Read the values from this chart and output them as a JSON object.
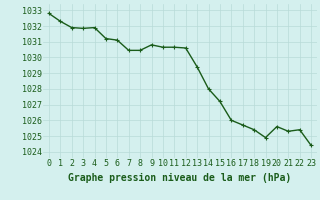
{
  "x": [
    0,
    1,
    2,
    3,
    4,
    5,
    6,
    7,
    8,
    9,
    10,
    11,
    12,
    13,
    14,
    15,
    16,
    17,
    18,
    19,
    20,
    21,
    22,
    23
  ],
  "y": [
    1032.8,
    1032.3,
    1031.9,
    1031.85,
    1031.9,
    1031.2,
    1031.1,
    1030.45,
    1030.45,
    1030.8,
    1030.65,
    1030.65,
    1030.6,
    1029.4,
    1028.0,
    1027.2,
    1026.0,
    1025.7,
    1025.4,
    1024.9,
    1025.6,
    1025.3,
    1025.4,
    1024.4
  ],
  "line_color": "#1a5c1a",
  "marker": "+",
  "markersize": 3.5,
  "linewidth": 1.0,
  "bg_color": "#d4f0ee",
  "grid_color": "#b8dbd8",
  "xlabel": "Graphe pression niveau de la mer (hPa)",
  "xlabel_fontsize": 7,
  "xlabel_color": "#1a5c1a",
  "tick_color": "#1a5c1a",
  "tick_fontsize": 6,
  "ytick_labels": [
    1024,
    1025,
    1026,
    1027,
    1028,
    1029,
    1030,
    1031,
    1032,
    1033
  ],
  "ylim": [
    1023.6,
    1033.4
  ],
  "xlim": [
    -0.5,
    23.5
  ],
  "xtick_labels": [
    "0",
    "1",
    "2",
    "3",
    "4",
    "5",
    "6",
    "7",
    "8",
    "9",
    "10",
    "11",
    "12",
    "13",
    "14",
    "15",
    "16",
    "17",
    "18",
    "19",
    "20",
    "21",
    "22",
    "23"
  ]
}
